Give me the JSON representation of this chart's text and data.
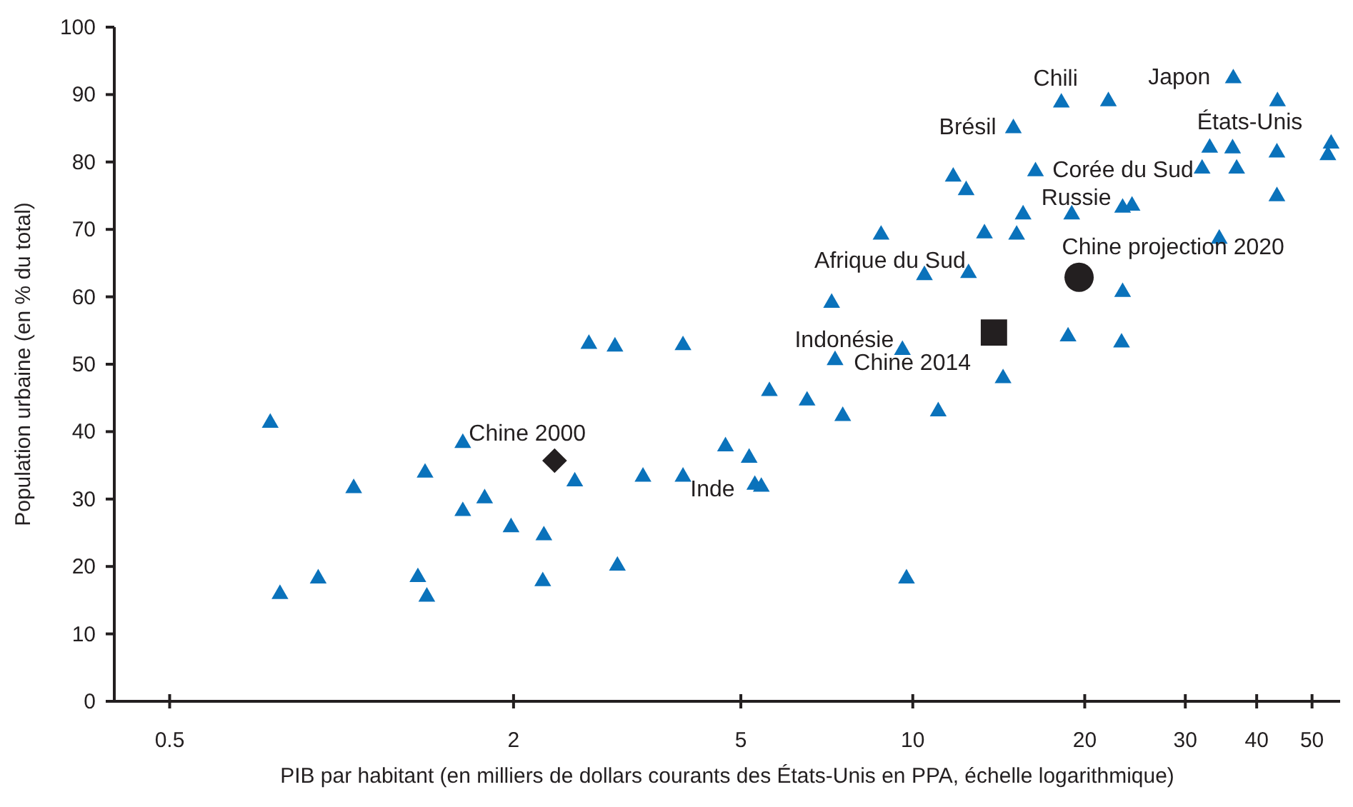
{
  "chart_data": {
    "type": "scatter",
    "xlabel": "PIB par habitant (en milliers de dollars courants des États-Unis en PPA, échelle logarithmique)",
    "ylabel": "Population urbaine (en % du total)",
    "log": "x",
    "xlim": [
      0.4,
      56
    ],
    "xticks": [
      0.5,
      2,
      5,
      10,
      20,
      30,
      40,
      50
    ],
    "ylim": [
      0,
      100
    ],
    "yticks": [
      0,
      10,
      20,
      30,
      40,
      50,
      60,
      70,
      80,
      90,
      100
    ],
    "grid": false,
    "series": [
      {
        "color": "#0a72bb",
        "marker": "triangle",
        "x": [
          0.75,
          0.78,
          0.91,
          1.05,
          1.36,
          1.4,
          1.41,
          1.63,
          1.63,
          1.78,
          1.98,
          2.25,
          2.26,
          2.56,
          2.71,
          3.01,
          3.04,
          3.37,
          3.96,
          3.96,
          4.7,
          5.17,
          5.29,
          5.43,
          5.61,
          6.53,
          7.54,
          7.31,
          7.21,
          8.8,
          10.48,
          12.52,
          9.59,
          11.08,
          9.75,
          14.39,
          18.7,
          13.35,
          15.2,
          18.2,
          22,
          36.4,
          43.5,
          15,
          33.1,
          36.3,
          43.4,
          54,
          53.3,
          32.1,
          36.9,
          11.77,
          12.4,
          16.4,
          43.4,
          15.6,
          18.98,
          23.3,
          24.2,
          34.4,
          23.3,
          23.2
        ],
        "values": [
          41.3,
          15.9,
          18.2,
          31.6,
          18.4,
          33.9,
          15.5,
          38.3,
          28.2,
          30.1,
          25.8,
          17.8,
          24.6,
          32.6,
          53,
          52.6,
          20.1,
          33.3,
          33.3,
          52.8,
          37.8,
          36.1,
          32.1,
          31.8,
          46,
          44.6,
          42.3,
          50.6,
          59.1,
          69.2,
          63.2,
          63.5,
          52.1,
          43,
          18.2,
          47.9,
          54.1,
          69.4,
          69.2,
          88.8,
          89,
          92.4,
          89,
          85,
          82.1,
          82,
          81.4,
          82.7,
          81,
          79,
          79,
          77.8,
          75.8,
          78.6,
          74.9,
          72.2,
          72.2,
          73.2,
          73.5,
          68.6,
          60.7,
          53.2
        ]
      },
      {
        "name": "Chine 2000",
        "color": "#231f20",
        "marker": "diamond",
        "x": [
          2.36
        ],
        "values": [
          35.7
        ]
      },
      {
        "name": "Chine 2014",
        "color": "#231f20",
        "marker": "square",
        "x": [
          13.87
        ],
        "values": [
          54.7
        ]
      },
      {
        "name": "Chine projection 2020",
        "color": "#231f20",
        "marker": "circle",
        "x": [
          19.55
        ],
        "values": [
          62.9
        ]
      }
    ],
    "annotations": [
      {
        "text": "Chili",
        "x": 18.2,
        "y": 88.8
      },
      {
        "text": "Japon",
        "x": 36.4,
        "y": 92.4
      },
      {
        "text": "Brésil",
        "x": 15,
        "y": 85
      },
      {
        "text": "États-Unis",
        "x": 54,
        "y": 82.7
      },
      {
        "text": "Corée du Sud",
        "x": 32.1,
        "y": 79
      },
      {
        "text": "Russie",
        "x": 23.3,
        "y": 73.2
      },
      {
        "text": "Afrique du Sud",
        "x": 12.52,
        "y": 63.5
      },
      {
        "text": "Indonésie",
        "x": 9.59,
        "y": 52.1
      },
      {
        "text": "Inde",
        "x": 5.29,
        "y": 32.1
      }
    ]
  }
}
